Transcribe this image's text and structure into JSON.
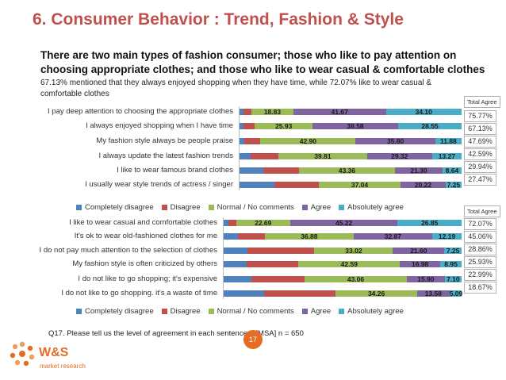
{
  "title": "6. Consumer Behavior : Trend, Fashion & Style",
  "subtitle": "There are two main types of fashion consumer; those who like to pay attention on choosing appropriate clothes; and those who like to wear casual & comfortable clothes",
  "description": "67.13% mentioned that they always enjoyed shopping when they have time, while 72.07% like to wear casual & comfortable clothes",
  "footnote": "Q17. Please tell us the level of agreement in each sentence ? [MSA] n = 650",
  "page_number": "17",
  "logo": {
    "name": "W&S",
    "tagline": "market research"
  },
  "colors": {
    "completely_disagree": "#4f81bd",
    "disagree": "#c0504d",
    "normal": "#9bbb59",
    "agree": "#8064a2",
    "absolutely_agree": "#4bacc6",
    "title": "#c0504d",
    "accent": "#e46c24"
  },
  "chart_data": [
    {
      "type": "bar",
      "orientation": "horizontal",
      "stacked": "100%",
      "total_header": "Total Agree",
      "legend": [
        "Completely disagree",
        "Disagree",
        "Normal / No comments",
        "Agree",
        "Absolutely agree"
      ],
      "categories": [
        "I pay deep attention to choosing the appropriate clothes",
        "I always enjoyed shopping when I have time",
        "My fashion style always be people praise",
        "I always update the latest fashion trends",
        "I like to wear famous brand clothes",
        "I usually wear style trends of actress / singer"
      ],
      "series": [
        {
          "name": "Completely disagree",
          "values": [
            1.69,
            1.94,
            2.18,
            5.03,
            10.77,
            15.77
          ]
        },
        {
          "name": "Disagree",
          "values": [
            3.71,
            5.0,
            7.23,
            12.54,
            15.95,
            19.94
          ]
        },
        {
          "name": "Normal / No comments",
          "values": [
            18.83,
            25.93,
            42.9,
            39.81,
            43.36,
            37.04
          ]
        },
        {
          "name": "Agree",
          "values": [
            41.67,
            38.58,
            35.8,
            29.32,
            21.3,
            20.22
          ]
        },
        {
          "name": "Absolutely agree",
          "values": [
            34.1,
            28.55,
            11.88,
            13.27,
            8.64,
            7.25
          ]
        }
      ],
      "labels": [
        [
          null,
          null,
          "18.83",
          "41.67",
          "34.10"
        ],
        [
          null,
          null,
          "25.93",
          "38.58",
          "28.55"
        ],
        [
          null,
          null,
          "42.90",
          "35.80",
          "11.88"
        ],
        [
          null,
          null,
          "39.81",
          "29.32",
          "13.27"
        ],
        [
          null,
          null,
          "43.36",
          "21.30",
          "8.64"
        ],
        [
          null,
          null,
          "37.04",
          "20.22",
          "7.25"
        ]
      ],
      "total_agree": [
        "75.77%",
        "67.13%",
        "47.69%",
        "42.59%",
        "29.94%",
        "27.47%"
      ]
    },
    {
      "type": "bar",
      "orientation": "horizontal",
      "stacked": "100%",
      "total_header": "Total Agree",
      "legend": [
        "Completely disagree",
        "Disagree",
        "Normal / No comments",
        "Agree",
        "Absolutely agree"
      ],
      "categories": [
        "I like to wear casual and comfortable clothes",
        "It's ok to wear old-fashioned clothes for me",
        "I do not pay much attention to the selection of clothes",
        "My fashion style is often criticized by others",
        "I do not like to go shopping; it's expensive",
        "I do not like to go shopping. it's a waste of time"
      ],
      "series": [
        {
          "name": "Completely disagree",
          "values": [
            1.84,
            5.82,
            9.84,
            9.69,
            11.75,
            17.08
          ]
        },
        {
          "name": "Disagree",
          "values": [
            3.4,
            11.4,
            28.31,
            21.78,
            22.27,
            30.0
          ]
        },
        {
          "name": "Normal / No comments",
          "values": [
            22.69,
            36.88,
            33.02,
            42.59,
            43.06,
            34.26
          ]
        },
        {
          "name": "Agree",
          "values": [
            45.22,
            32.87,
            21.6,
            16.98,
            15.9,
            13.58
          ]
        },
        {
          "name": "Absolutely agree",
          "values": [
            26.85,
            12.19,
            7.25,
            8.95,
            7.1,
            5.09
          ]
        }
      ],
      "labels": [
        [
          null,
          null,
          "22.69",
          "45.22",
          "26.85"
        ],
        [
          null,
          null,
          "36.88",
          "32.87",
          "12.19"
        ],
        [
          null,
          null,
          "33.02",
          "21.60",
          "7.25"
        ],
        [
          null,
          null,
          "42.59",
          "16.98",
          "8.95"
        ],
        [
          null,
          null,
          "43.06",
          "15.90",
          "7.10"
        ],
        [
          null,
          null,
          "34.26",
          "13.58",
          "5.09"
        ]
      ],
      "total_agree": [
        "72.07%",
        "45.06%",
        "28.86%",
        "25.93%",
        "22.99%",
        "18.67%"
      ]
    }
  ]
}
